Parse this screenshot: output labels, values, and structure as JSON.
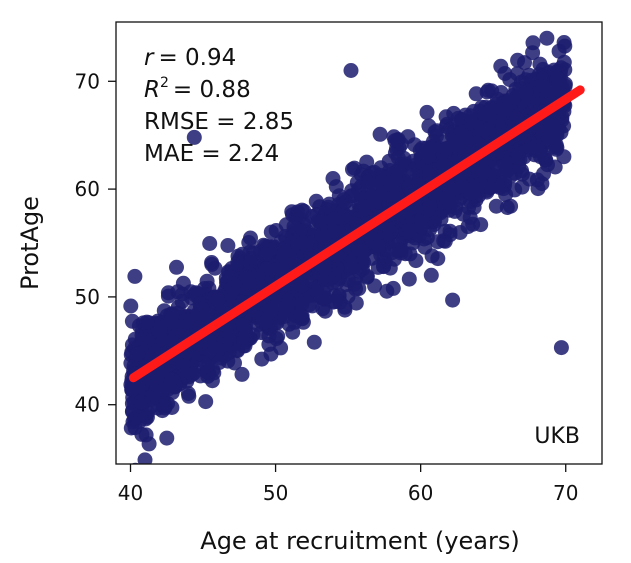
{
  "chart_data": {
    "type": "scatter",
    "xlabel": "Age at recruitment (years)",
    "ylabel": "ProtAge",
    "xlim": [
      39,
      72.5
    ],
    "ylim": [
      34.5,
      75.5
    ],
    "xticks": [
      40,
      50,
      60,
      70
    ],
    "yticks": [
      40,
      50,
      60,
      70
    ],
    "grid": false,
    "point_color": "#1c1c6e",
    "fit_line_color": "#ff1a1a",
    "fit_line": {
      "x": [
        40.2,
        71.0
      ],
      "y": [
        42.5,
        69.2
      ]
    },
    "stats": {
      "r_label": "r",
      "r_value": "= 0.94",
      "r2_label": "R",
      "r2_sup": "2",
      "r2_value": "= 0.88",
      "rmse": "RMSE = 2.85",
      "mae": "MAE = 2.24"
    },
    "dataset_label": "UKB",
    "outliers": [
      {
        "x": 69.7,
        "y": 45.3
      },
      {
        "x": 62.2,
        "y": 49.7
      },
      {
        "x": 44.4,
        "y": 64.8
      },
      {
        "x": 55.2,
        "y": 71.0
      },
      {
        "x": 68.7,
        "y": 74.0
      },
      {
        "x": 42.5,
        "y": 36.9
      },
      {
        "x": 40.3,
        "y": 51.9
      }
    ]
  }
}
